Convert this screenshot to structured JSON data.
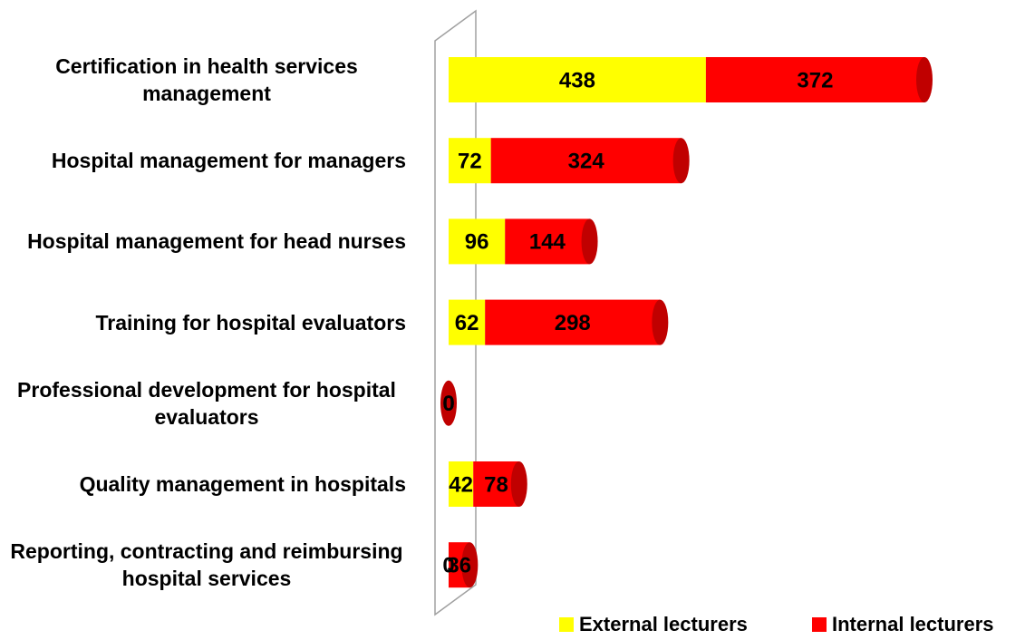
{
  "chart_data": {
    "type": "bar",
    "orientation": "horizontal",
    "stacked": true,
    "categories": [
      "Certification in health services management",
      "Hospital management for managers",
      "Hospital management for head nurses",
      "Training for hospital evaluators",
      "Professional development for hospital evaluators",
      "Quality management in hospitals",
      "Reporting, contracting and reimbursing hospital services"
    ],
    "series": [
      {
        "name": "External lecturers",
        "color": "#ffff00",
        "values": [
          438,
          72,
          96,
          62,
          0,
          42,
          0
        ]
      },
      {
        "name": "Internal lecturers",
        "color": "#ff0000",
        "values": [
          372,
          324,
          144,
          298,
          0,
          78,
          36
        ]
      }
    ],
    "legend": "bottom"
  }
}
